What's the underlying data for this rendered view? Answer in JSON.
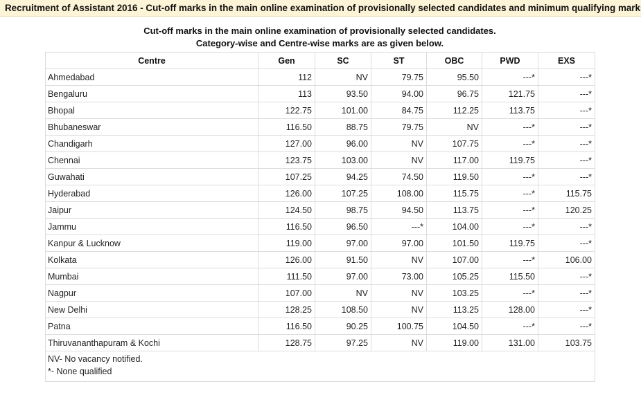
{
  "header": {
    "title": "Recruitment of Assistant 2016 - Cut-off marks in the main online examination of provisionally selected candidates and minimum qualifying marks"
  },
  "subtitle": {
    "line1": "Cut-off marks in the main online examination of provisionally selected candidates.",
    "line2": "Category-wise and Centre-wise marks are as given below."
  },
  "table": {
    "columns": [
      "Centre",
      "Gen",
      "SC",
      "ST",
      "OBC",
      "PWD",
      "EXS"
    ],
    "rows": [
      [
        "Ahmedabad",
        "112",
        "NV",
        "79.75",
        "95.50",
        "---*",
        "---*"
      ],
      [
        "Bengaluru",
        "113",
        "93.50",
        "94.00",
        "96.75",
        "121.75",
        "---*"
      ],
      [
        "Bhopal",
        "122.75",
        "101.00",
        "84.75",
        "112.25",
        "113.75",
        "---*"
      ],
      [
        "Bhubaneswar",
        "116.50",
        "88.75",
        "79.75",
        "NV",
        "---*",
        "---*"
      ],
      [
        "Chandigarh",
        "127.00",
        "96.00",
        "NV",
        "107.75",
        "---*",
        "---*"
      ],
      [
        "Chennai",
        "123.75",
        "103.00",
        "NV",
        "117.00",
        "119.75",
        "---*"
      ],
      [
        "Guwahati",
        "107.25",
        "94.25",
        "74.50",
        "119.50",
        "---*",
        "---*"
      ],
      [
        "Hyderabad",
        "126.00",
        "107.25",
        "108.00",
        "115.75",
        "---*",
        "115.75"
      ],
      [
        "Jaipur",
        "124.50",
        "98.75",
        "94.50",
        "113.75",
        "---*",
        "120.25"
      ],
      [
        "Jammu",
        "116.50",
        "96.50",
        "---*",
        "104.00",
        "---*",
        "---*"
      ],
      [
        "Kanpur & Lucknow",
        "119.00",
        "97.00",
        "97.00",
        "101.50",
        "119.75",
        "---*"
      ],
      [
        "Kolkata",
        "126.00",
        "91.50",
        "NV",
        "107.00",
        "---*",
        "106.00"
      ],
      [
        "Mumbai",
        "111.50",
        "97.00",
        "73.00",
        "105.25",
        "115.50",
        "---*"
      ],
      [
        "Nagpur",
        "107.00",
        "NV",
        "NV",
        "103.25",
        "---*",
        "---*"
      ],
      [
        "New Delhi",
        "128.25",
        "108.50",
        "NV",
        "113.25",
        "128.00",
        "---*"
      ],
      [
        "Patna",
        "116.50",
        "90.25",
        "100.75",
        "104.50",
        "---*",
        "---*"
      ],
      [
        "Thiruvananthapuram & Kochi",
        "128.75",
        "97.25",
        "NV",
        "119.00",
        "131.00",
        "103.75"
      ]
    ],
    "notes": [
      "NV- No vacancy notified.",
      "*- None qualified"
    ]
  }
}
